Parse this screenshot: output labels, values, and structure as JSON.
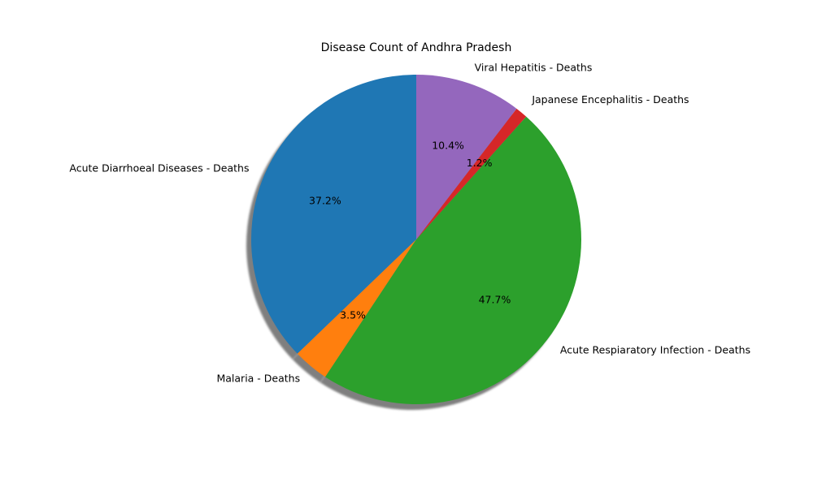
{
  "chart_data": {
    "type": "pie",
    "title": "Disease Count of Andhra Pradesh",
    "shadow": true,
    "start_angle_deg": 90,
    "direction": "counterclockwise",
    "slices": [
      {
        "label": "Acute Diarrhoeal Diseases - Deaths",
        "value": 37.2,
        "pct_label": "37.2%",
        "color": "#1f77b4"
      },
      {
        "label": "Malaria - Deaths",
        "value": 3.5,
        "pct_label": "3.5%",
        "color": "#ff7f0e"
      },
      {
        "label": "Acute Respiaratory Infection - Deaths",
        "value": 47.7,
        "pct_label": "47.7%",
        "color": "#2ca02c"
      },
      {
        "label": "Japanese Encephalitis - Deaths",
        "value": 1.2,
        "pct_label": "1.2%",
        "color": "#d62728"
      },
      {
        "label": "Viral Hepatitis - Deaths",
        "value": 10.4,
        "pct_label": "10.4%",
        "color": "#9467bd"
      }
    ]
  }
}
